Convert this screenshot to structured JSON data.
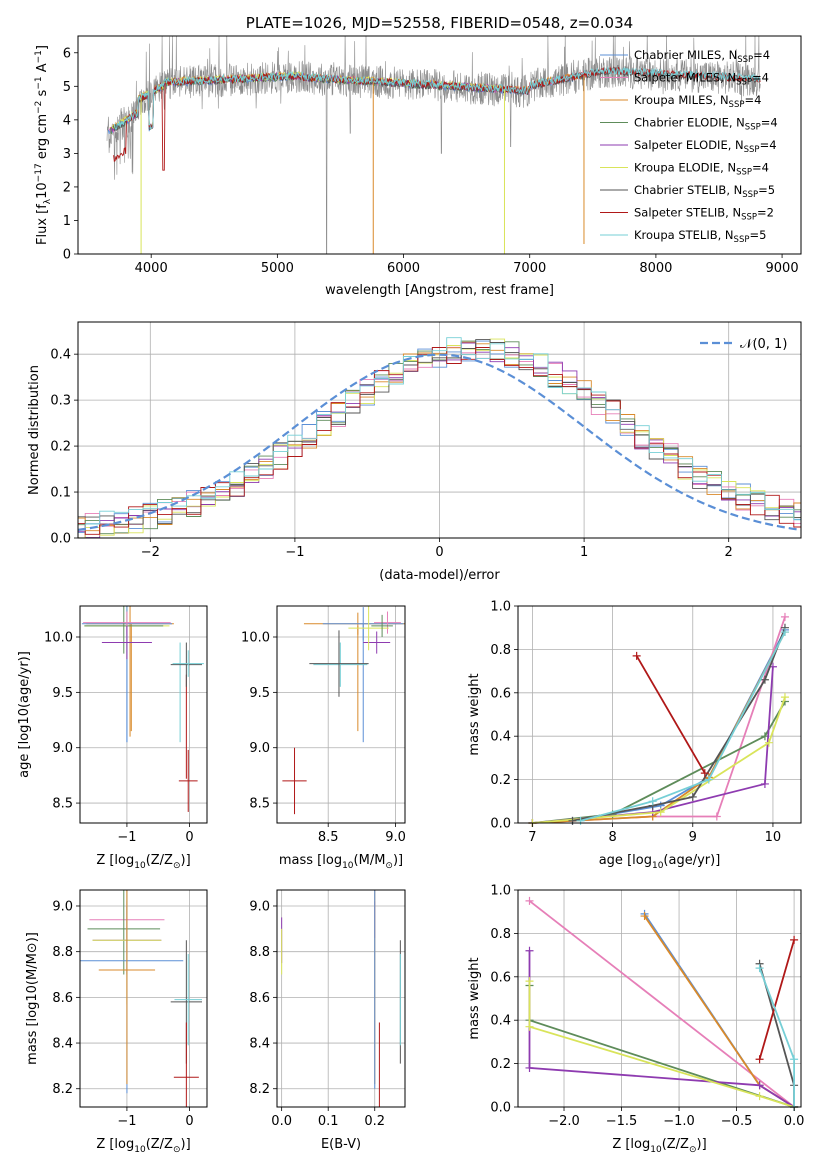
{
  "title": "PLATE=1026, MJD=52558, FIBERID=0548, z=0.034",
  "colors": {
    "Chabrier MILES": "#5b8fd6",
    "Salpeter MILES": "#e67fb8",
    "Kroupa MILES": "#d98a2b",
    "Chabrier ELODIE": "#5e8c5a",
    "Salpeter ELODIE": "#8e3bb0",
    "Kroupa ELODIE": "#d9e45a",
    "Chabrier STELIB": "#555555",
    "Salpeter STELIB": "#b01818",
    "Kroupa STELIB": "#76cfd6",
    "data": "#8c8c8c",
    "normal": "#5b8fd6"
  },
  "chart_data": [
    {
      "id": "spectrum",
      "type": "line",
      "title": "PLATE=1026, MJD=52558, FIBERID=0548, z=0.034",
      "xlabel": "wavelength [Angstrom, rest frame]",
      "ylabel_main": "Flux [f",
      "ylabel_sub": "λ",
      "ylabel_rest": "10",
      "ylabel_exp1": "−17",
      "ylabel_units": " erg cm",
      "ylabel_exp2": "−2",
      "ylabel_s": " s",
      "ylabel_exp3": "−1",
      "ylabel_A": " A",
      "ylabel_exp4": "−1",
      "ylabel_end": "]",
      "xlim": [
        3420,
        9150
      ],
      "ylim": [
        0,
        6.5
      ],
      "xticks": [
        4000,
        5000,
        6000,
        7000,
        8000,
        9000
      ],
      "yticks": [
        0,
        1,
        2,
        3,
        4,
        5,
        6
      ],
      "legend": "upper right",
      "legend_entries": [
        {
          "prefix": "Chabrier MILES, N",
          "sub": "SSP",
          "suffix": "=4"
        },
        {
          "prefix": "Salpeter MILES, N",
          "sub": "SSP",
          "suffix": "=4"
        },
        {
          "prefix": "Kroupa MILES, N",
          "sub": "SSP",
          "suffix": "=4"
        },
        {
          "prefix": "Chabrier ELODIE, N",
          "sub": "SSP",
          "suffix": "=4"
        },
        {
          "prefix": "Salpeter ELODIE, N",
          "sub": "SSP",
          "suffix": "=4"
        },
        {
          "prefix": "Kroupa ELODIE, N",
          "sub": "SSP",
          "suffix": "=4"
        },
        {
          "prefix": "Chabrier STELIB, N",
          "sub": "SSP",
          "suffix": "=5"
        },
        {
          "prefix": "Salpeter STELIB, N",
          "sub": "SSP",
          "suffix": "=2"
        },
        {
          "prefix": "Kroupa STELIB, N",
          "sub": "SSP",
          "suffix": "=5"
        }
      ],
      "data_range": [
        3650,
        8830
      ],
      "model_drops": [
        {
          "series": "Kroupa MILES",
          "x": 5760,
          "y": 0
        },
        {
          "series": "Kroupa MILES",
          "x": 7430,
          "y": 0.3
        },
        {
          "series": "Kroupa ELODIE",
          "x": 3920,
          "y": 0
        },
        {
          "series": "Kroupa ELODIE",
          "x": 6800,
          "y": 0
        }
      ]
    },
    {
      "id": "residual-hist",
      "type": "histogram",
      "xlabel": "(data-model)/error",
      "ylabel": "Normed distribution",
      "xlim": [
        -2.5,
        2.5
      ],
      "ylim": [
        0,
        0.47
      ],
      "xticks": [
        -2,
        -1,
        0,
        1,
        2
      ],
      "yticks": [
        0.0,
        0.1,
        0.2,
        0.3,
        0.4
      ],
      "grid": true,
      "legend_label": "𝒩(0, 1)",
      "normal": {
        "mean": 0,
        "sigma": 1
      }
    },
    {
      "id": "age-vs-Z",
      "type": "errorbar",
      "xlabel": "Z [log",
      "xlabel_sub": "10",
      "xlabel_rest": "(Z/Z",
      "xlabel_sun": "⊙",
      "xlabel_end": ")]",
      "ylabel": "age  [log10(age/yr)]",
      "xlim": [
        -1.75,
        0.28
      ],
      "ylim": [
        8.32,
        10.28
      ],
      "xticks": [
        -1,
        0
      ],
      "yticks": [
        8.5,
        9.0,
        9.5,
        10.0
      ],
      "grid": true,
      "points": [
        {
          "series": "Kroupa ELODIE",
          "x": -1.0,
          "y": 10.1,
          "xerr": 0.68,
          "yerr": 0.3
        },
        {
          "series": "Kroupa MILES",
          "x": -0.95,
          "y": 10.12,
          "xerr": 0.7,
          "yerr": 1.02
        },
        {
          "series": "Chabrier MILES",
          "x": -1.0,
          "y": 10.12,
          "xerr": 0.72,
          "yerr": 1.07
        },
        {
          "series": "Chabrier ELODIE",
          "x": -1.05,
          "y": 10.1,
          "xerr": 0.63,
          "yerr": 0.25
        },
        {
          "series": "Salpeter MILES",
          "x": -1.0,
          "y": 10.13,
          "xerr": 0.7,
          "yerr": 0.1
        },
        {
          "series": "Salpeter ELODIE",
          "x": -1.0,
          "y": 9.95,
          "xerr": 0.4,
          "yerr": 0.15
        },
        {
          "series": "Chabrier STELIB",
          "x": -0.05,
          "y": 9.75,
          "xerr": 0.25,
          "yerr": 0.2
        },
        {
          "series": "Kroupa STELIB",
          "x": -0.02,
          "y": 9.76,
          "xerr": 0.25,
          "yerr": 0.12
        },
        {
          "series": "Salpeter STELIB",
          "x": -0.02,
          "y": 8.7,
          "xerr": 0.15,
          "yerr": 0.28
        }
      ],
      "extra_vlines": [
        {
          "series": "Salpeter STELIB",
          "x": -0.05,
          "y1": 8.72,
          "y2": 9.66
        },
        {
          "series": "Kroupa STELIB",
          "x": -0.15,
          "y1": 9.05,
          "y2": 9.95
        },
        {
          "series": "Chabrier MILES",
          "x": -1.0,
          "y1": 9.05,
          "y2": 10.1
        },
        {
          "series": "Kroupa MILES",
          "x": -0.93,
          "y1": 9.15,
          "y2": 10.12
        }
      ]
    },
    {
      "id": "age-vs-mass",
      "type": "errorbar",
      "xlabel": "mass [log",
      "xlabel_sub": "10",
      "xlabel_rest": "(M/M",
      "xlabel_sun": "⊙",
      "xlabel_end": ")]",
      "xlim": [
        8.12,
        9.07
      ],
      "ylim": [
        8.32,
        10.28
      ],
      "xticks": [
        8.5,
        9.0
      ],
      "yticks": [
        8.5,
        9.0,
        9.5,
        10.0
      ],
      "grid": true,
      "points": [
        {
          "series": "Salpeter STELIB",
          "x": 8.25,
          "y": 8.7,
          "xerr": 0.09,
          "yerr": 0.3
        },
        {
          "series": "Kroupa STELIB",
          "x": 8.59,
          "y": 9.75,
          "xerr": 0.2,
          "yerr": 0.2
        },
        {
          "series": "Chabrier STELIB",
          "x": 8.58,
          "y": 9.76,
          "xerr": 0.22,
          "yerr": 0.3
        },
        {
          "series": "Kroupa MILES",
          "x": 8.72,
          "y": 10.12,
          "xerr": 0.4,
          "yerr": 0.1
        },
        {
          "series": "Chabrier MILES",
          "x": 8.76,
          "y": 10.12,
          "xerr": 0.3,
          "yerr": 0.15
        },
        {
          "series": "Salpeter MILES",
          "x": 8.94,
          "y": 10.13,
          "xerr": 0.1,
          "yerr": 0.1
        },
        {
          "series": "Salpeter ELODIE",
          "x": 8.86,
          "y": 9.95,
          "xerr": 0.1,
          "yerr": 0.1
        },
        {
          "series": "Kroupa ELODIE",
          "x": 8.8,
          "y": 10.08,
          "xerr": 0.15,
          "yerr": 0.2
        },
        {
          "series": "Chabrier ELODIE",
          "x": 8.9,
          "y": 10.1,
          "xerr": 0.08,
          "yerr": 0.1
        }
      ],
      "extra_vlines": [
        {
          "series": "Chabrier MILES",
          "x": 8.76,
          "y1": 9.05,
          "y2": 10.12
        },
        {
          "series": "Kroupa MILES",
          "x": 8.72,
          "y1": 9.15,
          "y2": 10.1
        }
      ]
    },
    {
      "id": "massweight-vs-age",
      "type": "line",
      "xlabel": "age  [log",
      "xlabel_sub": "10",
      "xlabel_rest": "(age/yr)]",
      "ylabel": "mass weight",
      "xlim": [
        6.82,
        10.35
      ],
      "ylim": [
        0,
        1.0
      ],
      "xticks": [
        7,
        8,
        9,
        10
      ],
      "yticks": [
        0.0,
        0.2,
        0.4,
        0.6,
        0.8,
        1.0
      ],
      "grid": true,
      "series": [
        {
          "name": "Chabrier MILES",
          "points": [
            [
              7.5,
              0.01
            ],
            [
              8.6,
              0.08
            ],
            [
              9.2,
              0.21
            ],
            [
              10.15,
              0.89
            ]
          ]
        },
        {
          "name": "Salpeter MILES",
          "points": [
            [
              7.0,
              0.0
            ],
            [
              8.5,
              0.03
            ],
            [
              9.3,
              0.03
            ],
            [
              10.15,
              0.95
            ]
          ]
        },
        {
          "name": "Kroupa MILES",
          "points": [
            [
              7.0,
              0.0
            ],
            [
              8.5,
              0.03
            ],
            [
              9.2,
              0.21
            ],
            [
              10.15,
              0.88
            ]
          ]
        },
        {
          "name": "Chabrier ELODIE",
          "points": [
            [
              7.0,
              0.0
            ],
            [
              8.0,
              0.04
            ],
            [
              9.9,
              0.4
            ],
            [
              10.15,
              0.56
            ]
          ]
        },
        {
          "name": "Salpeter ELODIE",
          "points": [
            [
              7.0,
              0.0
            ],
            [
              8.5,
              0.05
            ],
            [
              9.9,
              0.18
            ],
            [
              10.0,
              0.72
            ]
          ]
        },
        {
          "name": "Kroupa ELODIE",
          "points": [
            [
              7.0,
              0.0
            ],
            [
              8.6,
              0.05
            ],
            [
              9.95,
              0.37
            ],
            [
              10.15,
              0.58
            ]
          ]
        },
        {
          "name": "Chabrier STELIB",
          "points": [
            [
              7.5,
              0.01
            ],
            [
              8.5,
              0.08
            ],
            [
              9.0,
              0.12
            ],
            [
              9.9,
              0.66
            ],
            [
              10.15,
              0.9
            ]
          ]
        },
        {
          "name": "Salpeter STELIB",
          "points": [
            [
              8.3,
              0.77
            ],
            [
              9.15,
              0.23
            ]
          ]
        },
        {
          "name": "Kroupa STELIB",
          "points": [
            [
              7.6,
              0.01
            ],
            [
              8.5,
              0.1
            ],
            [
              9.2,
              0.2
            ],
            [
              10.15,
              0.88
            ]
          ]
        }
      ]
    },
    {
      "id": "mass-vs-Z",
      "type": "errorbar",
      "xlabel": "Z [log",
      "xlabel_sub": "10",
      "xlabel_rest": "(Z/Z",
      "xlabel_sun": "⊙",
      "xlabel_end": ")]",
      "ylabel": "mass [log10(M/M⊙)]",
      "xlim": [
        -1.75,
        0.28
      ],
      "ylim": [
        8.12,
        9.07
      ],
      "xticks": [
        -1,
        0
      ],
      "yticks": [
        8.2,
        8.4,
        8.6,
        8.8,
        9.0
      ],
      "grid": true,
      "points": [
        {
          "series": "Salpeter MILES",
          "x": -1.0,
          "y": 8.94,
          "xerr": 0.6,
          "yerr": 0.08
        },
        {
          "series": "Chabrier ELODIE",
          "x": -1.05,
          "y": 8.9,
          "xerr": 0.58,
          "yerr": 0.2
        },
        {
          "series": "Salpeter ELODIE",
          "x": -1.0,
          "y": 8.85,
          "xerr": 0.55,
          "yerr": 0.15
        },
        {
          "series": "Kroupa ELODIE",
          "x": -1.0,
          "y": 8.85,
          "xerr": 0.55,
          "yerr": 0.28
        },
        {
          "series": "Chabrier MILES",
          "x": -1.0,
          "y": 8.76,
          "xerr": 0.9,
          "yerr": 0.58
        },
        {
          "series": "Kroupa MILES",
          "x": -1.0,
          "y": 8.72,
          "xerr": 0.45,
          "yerr": 0.5
        },
        {
          "series": "Chabrier STELIB",
          "x": -0.05,
          "y": 8.58,
          "xerr": 0.25,
          "yerr": 0.27
        },
        {
          "series": "Kroupa STELIB",
          "x": -0.02,
          "y": 8.59,
          "xerr": 0.22,
          "yerr": 0.2
        },
        {
          "series": "Salpeter STELIB",
          "x": -0.05,
          "y": 8.25,
          "xerr": 0.2,
          "yerr": 0.24
        }
      ]
    },
    {
      "id": "mass-vs-EBV",
      "type": "errorbar",
      "xlabel": "E(B-V)",
      "xlim": [
        -0.01,
        0.265
      ],
      "ylim": [
        8.12,
        9.07
      ],
      "xticks": [
        0.0,
        0.1,
        0.2
      ],
      "yticks": [
        8.2,
        8.4,
        8.6,
        8.8,
        9.0
      ],
      "grid": true,
      "points": [
        {
          "series": "Salpeter ELODIE",
          "x": 0.0,
          "y": 8.85,
          "xerr": 0,
          "yerr": 0.1
        },
        {
          "series": "Kroupa ELODIE",
          "x": 0.0,
          "y": 8.8,
          "xerr": 0,
          "yerr": 0.1
        },
        {
          "series": "Salpeter MILES",
          "x": 0.2,
          "y": 8.94,
          "xerr": 0,
          "yerr": 0.08
        },
        {
          "series": "Kroupa MILES",
          "x": 0.2,
          "y": 8.72,
          "xerr": 0,
          "yerr": 0.5
        },
        {
          "series": "Chabrier MILES",
          "x": 0.2,
          "y": 8.76,
          "xerr": 0,
          "yerr": 0.56
        },
        {
          "series": "Salpeter STELIB",
          "x": 0.21,
          "y": 8.25,
          "xerr": 0,
          "yerr": 0.24
        },
        {
          "series": "Chabrier STELIB",
          "x": 0.255,
          "y": 8.58,
          "xerr": 0,
          "yerr": 0.27
        },
        {
          "series": "Kroupa STELIB",
          "x": 0.255,
          "y": 8.59,
          "xerr": 0,
          "yerr": 0.2
        }
      ]
    },
    {
      "id": "massweight-vs-Z",
      "type": "line",
      "xlabel": "Z [log",
      "xlabel_sub": "10",
      "xlabel_rest": "(Z/Z",
      "xlabel_sun": "⊙",
      "xlabel_end": ")]",
      "ylabel": "mass weight",
      "xlim": [
        -2.4,
        0.06
      ],
      "ylim": [
        0,
        1.0
      ],
      "xticks": [
        -2.0,
        -1.5,
        -1.0,
        -0.5,
        0.0
      ],
      "yticks": [
        0.0,
        0.2,
        0.4,
        0.6,
        0.8,
        1.0
      ],
      "grid": true,
      "series": [
        {
          "name": "Chabrier MILES",
          "points": [
            [
              -1.3,
              0.89
            ],
            [
              -0.3,
              0.1
            ],
            [
              0.0,
              0.0
            ]
          ]
        },
        {
          "name": "Salpeter MILES",
          "points": [
            [
              -2.3,
              0.95
            ],
            [
              0.0,
              0.0
            ]
          ]
        },
        {
          "name": "Kroupa MILES",
          "points": [
            [
              -1.3,
              0.88
            ],
            [
              -0.3,
              0.1
            ],
            [
              0.0,
              0.0
            ]
          ]
        },
        {
          "name": "Chabrier ELODIE",
          "points": [
            [
              -2.3,
              0.56
            ],
            [
              -2.3,
              0.4
            ],
            [
              0.0,
              0.0
            ]
          ]
        },
        {
          "name": "Salpeter ELODIE",
          "points": [
            [
              -2.3,
              0.72
            ],
            [
              -2.3,
              0.18
            ],
            [
              -0.3,
              0.1
            ],
            [
              0.0,
              0.0
            ]
          ]
        },
        {
          "name": "Kroupa ELODIE",
          "points": [
            [
              -2.3,
              0.58
            ],
            [
              -2.3,
              0.37
            ],
            [
              -0.3,
              0.05
            ],
            [
              0.0,
              0.0
            ]
          ]
        },
        {
          "name": "Chabrier STELIB",
          "points": [
            [
              -0.3,
              0.66
            ],
            [
              0.0,
              0.1
            ],
            [
              0.0,
              0.0
            ]
          ]
        },
        {
          "name": "Salpeter STELIB",
          "points": [
            [
              -0.3,
              0.22
            ],
            [
              0.0,
              0.77
            ]
          ]
        },
        {
          "name": "Kroupa STELIB",
          "points": [
            [
              -0.3,
              0.64
            ],
            [
              0.0,
              0.22
            ],
            [
              0.0,
              0.0
            ]
          ]
        }
      ]
    }
  ]
}
